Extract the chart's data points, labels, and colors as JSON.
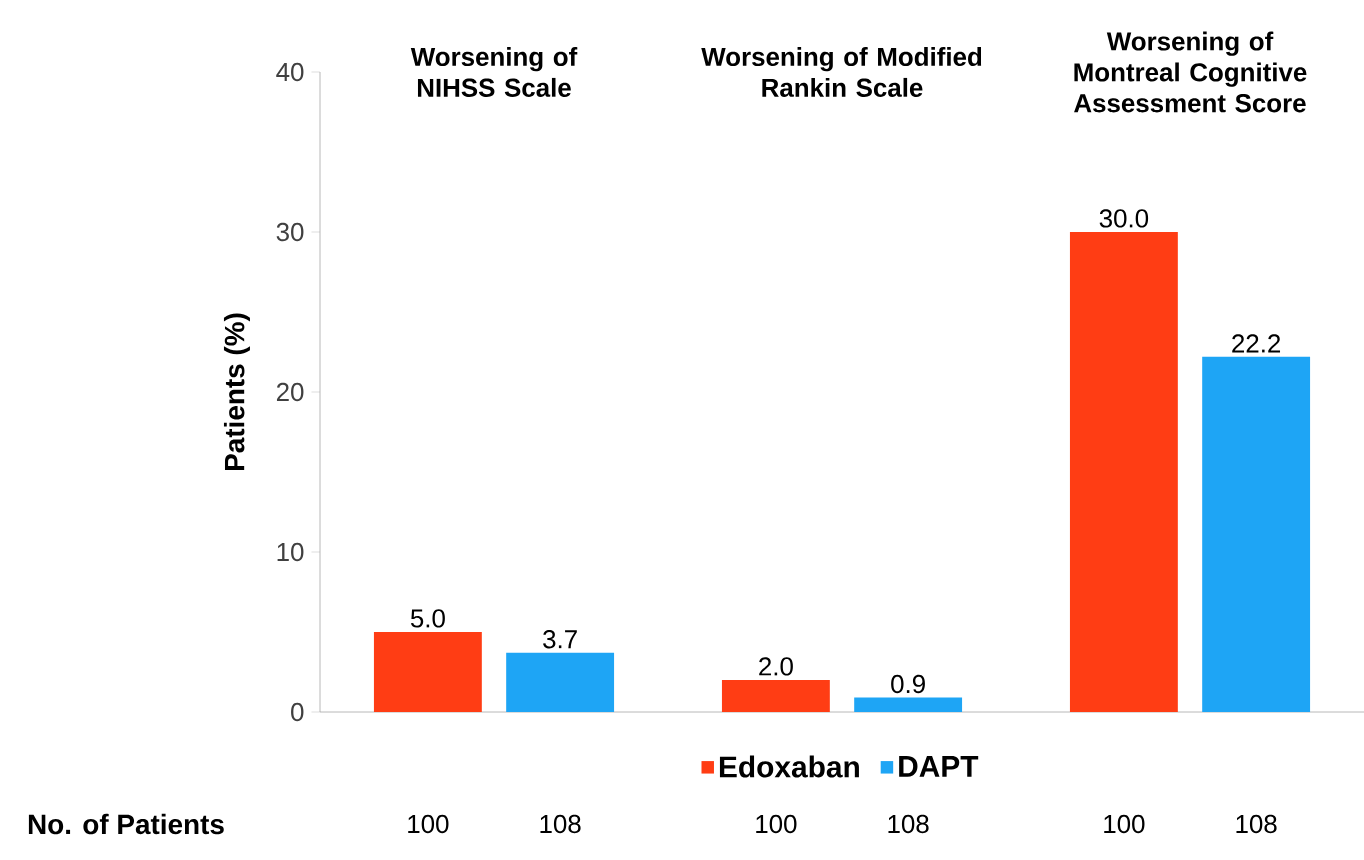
{
  "chart_data": {
    "type": "bar",
    "ylabel": "Patients  (%)",
    "categories": [
      "Worsening of NIHSS Scale",
      "Worsening of Modified Rankin Scale",
      "Worsening of Montreal Cognitive Assessment Score"
    ],
    "series": [
      {
        "name": "Edoxaban",
        "color": "#ff3d14",
        "values": [
          5.0,
          2.0,
          30.0
        ],
        "value_labels": [
          "5.0",
          "2.0",
          "30.0"
        ]
      },
      {
        "name": "DAPT",
        "color": "#1ea5f5",
        "values": [
          3.7,
          0.9,
          22.2
        ],
        "value_labels": [
          "3.7",
          "0.9",
          "22.2"
        ]
      }
    ],
    "ylim": [
      0,
      40
    ],
    "yticks": [
      0,
      10,
      20,
      30,
      40
    ],
    "grid": false,
    "legend": "bottom",
    "annotations": [
      "No. of Patients",
      "100",
      "108",
      "100",
      "108",
      "100",
      "108"
    ]
  }
}
